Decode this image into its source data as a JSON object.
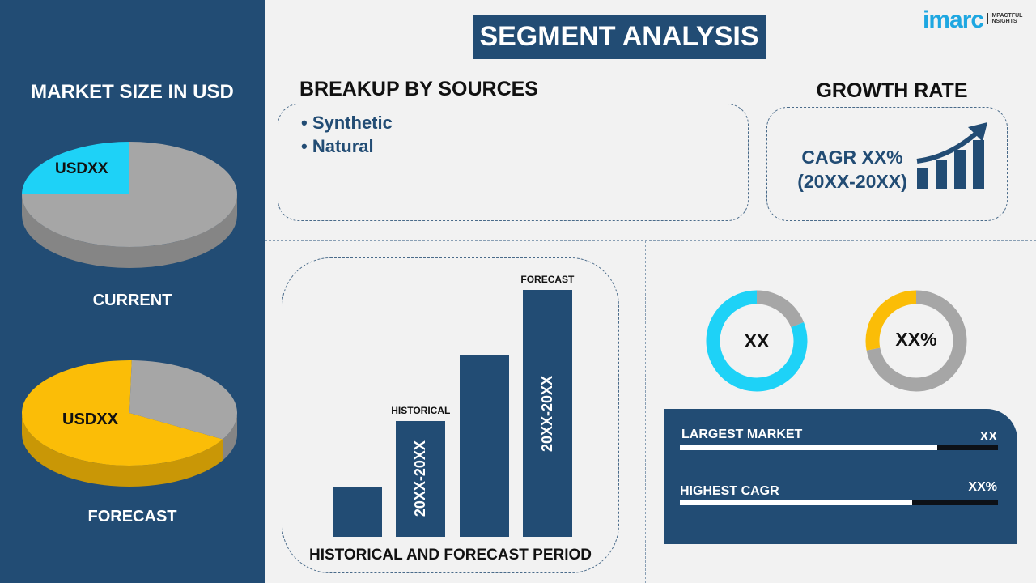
{
  "logo": {
    "brand": "imarc",
    "tagline": "IMPACTFUL INSIGHTS"
  },
  "title": "SEGMENT ANALYSIS",
  "market_size": {
    "heading": "MARKET SIZE IN USD",
    "current": {
      "label": "CURRENT",
      "value": "USDXX",
      "highlight_fraction": 0.25,
      "highlight_color": "#1ed2f7"
    },
    "forecast": {
      "label": "FORECAST",
      "value": "USDXX",
      "highlight_fraction": 0.67,
      "highlight_color": "#fbbd07"
    }
  },
  "breakup": {
    "heading": "BREAKUP BY SOURCES",
    "items": [
      "Synthetic",
      "Natural"
    ]
  },
  "growth": {
    "heading": "GROWTH RATE",
    "cagr": "CAGR XX%",
    "period": "(20XX-20XX)",
    "icon": "rising-bar-chart-arrow-icon"
  },
  "chart_data": {
    "type": "bar",
    "title": "HISTORICAL AND FORECAST PERIOD",
    "values": [
      1,
      2.3,
      3.6,
      4.9
    ],
    "bar_labels": [
      "",
      "20XX-20XX",
      "",
      "20XX-20XX"
    ],
    "annotations": [
      "",
      "HISTORICAL",
      "",
      "FORECAST"
    ],
    "color": "#224c74"
  },
  "donuts": [
    {
      "value": "XX",
      "fraction": 0.81,
      "color": "#1ed2f7",
      "rest_color": "#a6a6a6"
    },
    {
      "value": "XX%",
      "fraction": 0.28,
      "color": "#fbbd07",
      "rest_color": "#a6a6a6"
    }
  ],
  "kpis": [
    {
      "label": "LARGEST MARKET",
      "value": "XX",
      "fraction": 0.81
    },
    {
      "label": "HIGHEST CAGR",
      "value": "XX%",
      "fraction": 0.73
    }
  ],
  "colors": {
    "navy": "#224c74",
    "cyan": "#1ed2f7",
    "yellow": "#fbbd07",
    "gray": "#a6a6a6"
  }
}
